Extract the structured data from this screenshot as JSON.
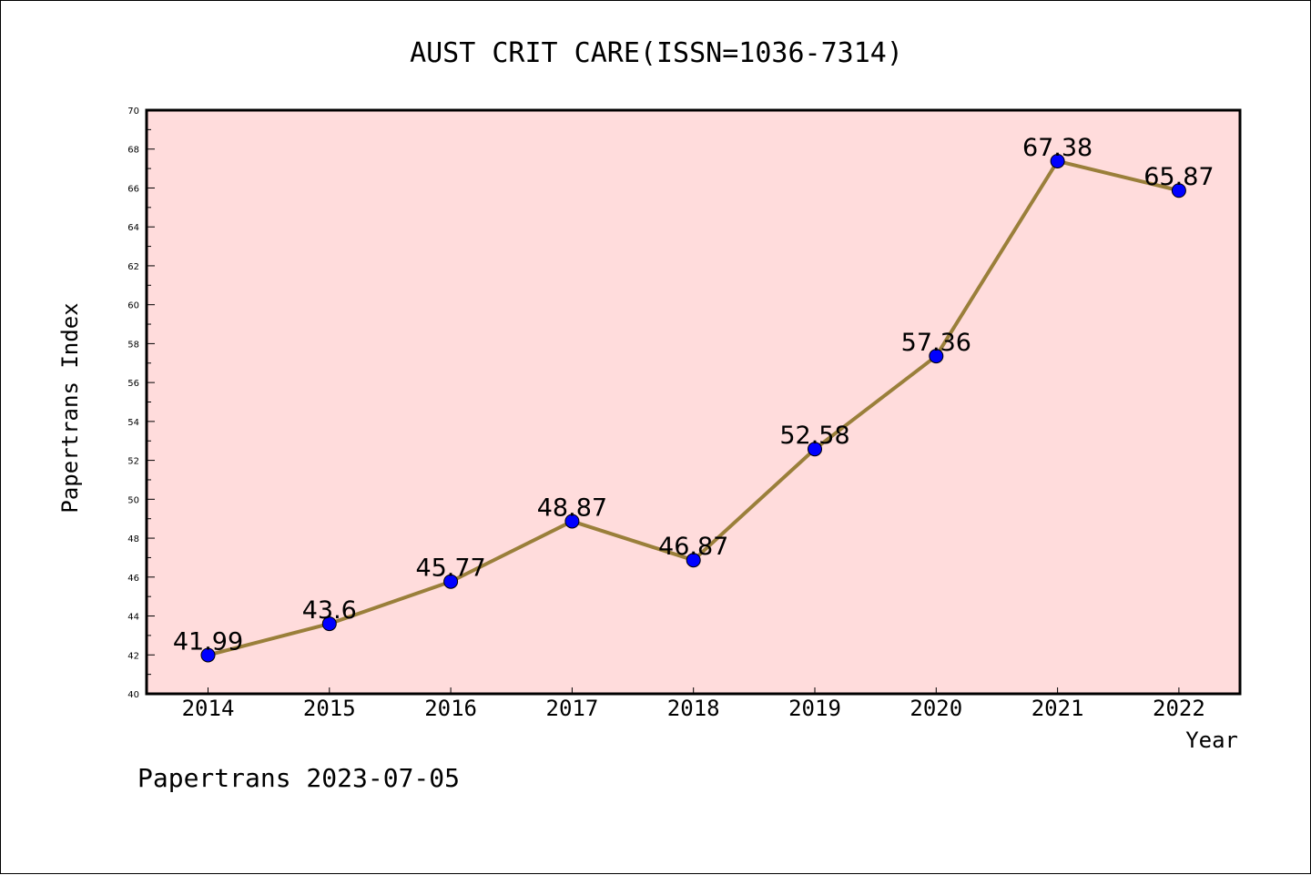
{
  "chart_data": {
    "type": "line",
    "title": "AUST CRIT CARE(ISSN=1036-7314)",
    "xlabel": "Year",
    "ylabel": "Papertrans Index",
    "x": [
      "2014",
      "2015",
      "2016",
      "2017",
      "2018",
      "2019",
      "2020",
      "2021",
      "2022"
    ],
    "series": [
      {
        "values": [
          41.99,
          43.6,
          45.77,
          48.87,
          46.87,
          52.58,
          57.36,
          67.38,
          65.87
        ],
        "labels": [
          "41.99",
          "43.6",
          "45.77",
          "48.87",
          "46.87",
          "52.58",
          "57.36",
          "67.38",
          "65.87"
        ]
      }
    ],
    "ylim": [
      40,
      70
    ],
    "yticks": [
      "40",
      "42",
      "44",
      "46",
      "48",
      "50",
      "52",
      "54",
      "56",
      "58",
      "60",
      "62",
      "64",
      "66",
      "68",
      "70"
    ],
    "grid": false,
    "colors": {
      "plot_background": "#ffdcdc",
      "line": "#9a7f3a",
      "marker": "#0000ff",
      "marker_edge": "#000000"
    }
  },
  "footer": {
    "text": "Papertrans 2023-07-05"
  }
}
